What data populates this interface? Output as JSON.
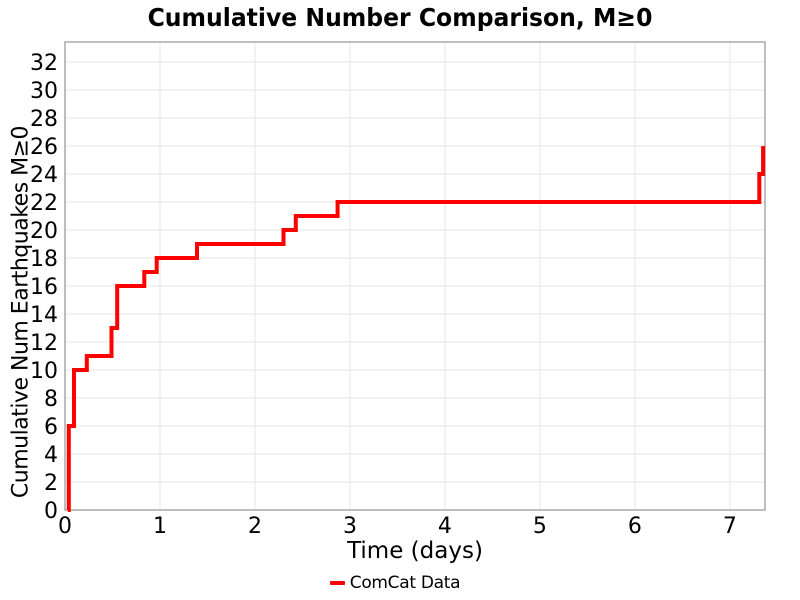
{
  "title": "Cumulative Number Comparison, M≥0",
  "colors": {
    "line": "#FF0000",
    "grid": "#E9E9E9",
    "spine": "#AAAAAA",
    "text": "#000000",
    "background": "#FFFFFF"
  },
  "legend": {
    "label": "ComCat Data",
    "swatch_color": "#FF0000",
    "position": "bottom-center"
  },
  "chart_data": {
    "type": "line",
    "line_style": "step-post",
    "title": "Cumulative Number Comparison, M≥0",
    "xlabel": "Time (days)",
    "ylabel": "Cumulative Num Earthquakes M≥0",
    "xlim": [
      0,
      7.37
    ],
    "ylim": [
      0,
      33.43
    ],
    "x_ticks": [
      0,
      1,
      2,
      3,
      4,
      5,
      6,
      7
    ],
    "y_ticks": [
      0,
      2,
      4,
      6,
      8,
      10,
      12,
      14,
      16,
      18,
      20,
      22,
      24,
      26,
      28,
      30,
      32
    ],
    "grid": true,
    "panel_border": true,
    "legend_position": "bottom-center",
    "series": [
      {
        "name": "ComCat Data",
        "color": "#FF0000",
        "line_width": 4,
        "steps": [
          [
            0.03,
            0
          ],
          [
            0.04,
            6
          ],
          [
            0.095,
            10
          ],
          [
            0.23,
            11
          ],
          [
            0.49,
            13
          ],
          [
            0.55,
            16
          ],
          [
            0.835,
            17
          ],
          [
            0.965,
            18
          ],
          [
            1.39,
            19
          ],
          [
            2.3,
            20
          ],
          [
            2.43,
            21
          ],
          [
            2.87,
            22
          ],
          [
            7.31,
            24
          ],
          [
            7.35,
            26
          ]
        ]
      }
    ]
  }
}
